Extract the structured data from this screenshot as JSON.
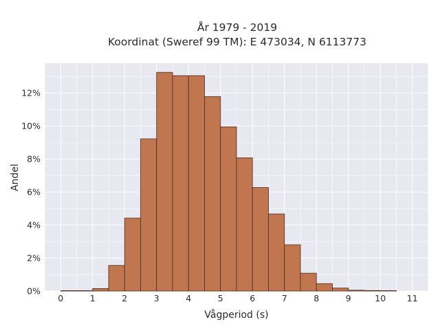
{
  "chart_data": {
    "type": "bar",
    "title": "År 1979 - 2019",
    "subtitle": "Koordinat (Sweref 99 TM): E 473034, N 6113773",
    "xlabel": "Vågperiod (s)",
    "ylabel": "Andel",
    "bin_width": 0.5,
    "bins_start": [
      0,
      0.5,
      1,
      1.5,
      2,
      2.5,
      3,
      3.5,
      4,
      4.5,
      5,
      5.5,
      6,
      6.5,
      7,
      7.5,
      8,
      8.5,
      9,
      9.5,
      10
    ],
    "values": [
      0.02,
      0,
      0.15,
      1.55,
      4.42,
      9.22,
      13.25,
      13.05,
      13.05,
      11.78,
      9.95,
      8.07,
      6.27,
      4.67,
      2.8,
      1.08,
      0.45,
      0.18,
      0.05,
      0.03,
      0.02
    ],
    "xlim": [
      -0.5,
      11.5
    ],
    "ylim": [
      0,
      13.8
    ],
    "x_ticks": [
      0,
      1,
      2,
      3,
      4,
      5,
      6,
      7,
      8,
      9,
      10,
      11
    ],
    "x_tick_labels": [
      "0",
      "1",
      "2",
      "3",
      "4",
      "5",
      "6",
      "7",
      "8",
      "9",
      "10",
      "11"
    ],
    "y_ticks": [
      0,
      2,
      4,
      6,
      8,
      10,
      12
    ],
    "y_tick_labels": [
      "0%",
      "2%",
      "4%",
      "6%",
      "8%",
      "10%",
      "12%"
    ],
    "grid": true,
    "colors": {
      "bar_fill": "#c0774f",
      "bar_stroke": "#4a2a1c",
      "plot_background": "#e8e8f0",
      "grid": "#ffffff"
    }
  }
}
